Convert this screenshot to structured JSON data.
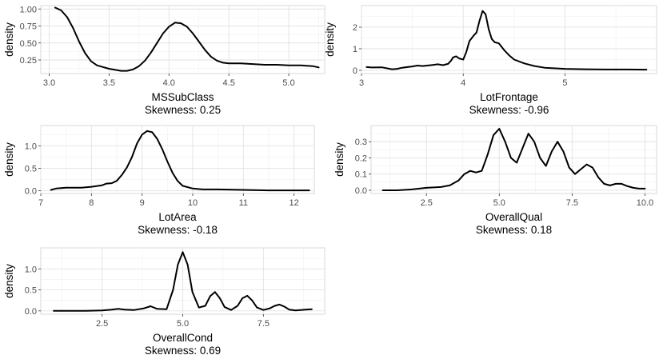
{
  "chart_data": [
    {
      "type": "line",
      "xlabel": "MSSubClass",
      "subtitle": "Skewness: 0.25",
      "ylabel": "density",
      "xlim": [
        2.93,
        5.3
      ],
      "ylim": [
        0.05,
        1.05
      ],
      "xticks": [
        3.0,
        3.5,
        4.0,
        4.5,
        5.0
      ],
      "xtick_labels": [
        "3.0",
        "3.5",
        "4.0",
        "4.5",
        "5.0"
      ],
      "yticks": [
        0.25,
        0.5,
        0.75,
        1.0
      ],
      "ytick_labels": [
        "0.25",
        "0.50",
        "0.75",
        "1.00"
      ],
      "grid": true,
      "x": [
        3.05,
        3.1,
        3.15,
        3.2,
        3.25,
        3.3,
        3.35,
        3.4,
        3.5,
        3.6,
        3.65,
        3.7,
        3.75,
        3.8,
        3.85,
        3.9,
        3.95,
        4.0,
        4.05,
        4.1,
        4.15,
        4.2,
        4.25,
        4.3,
        4.35,
        4.4,
        4.45,
        4.5,
        4.6,
        4.7,
        4.8,
        4.9,
        5.0,
        5.1,
        5.2,
        5.25
      ],
      "y": [
        1.02,
        0.98,
        0.88,
        0.72,
        0.52,
        0.35,
        0.23,
        0.17,
        0.12,
        0.09,
        0.09,
        0.11,
        0.16,
        0.24,
        0.36,
        0.5,
        0.64,
        0.74,
        0.8,
        0.79,
        0.74,
        0.64,
        0.52,
        0.4,
        0.3,
        0.24,
        0.21,
        0.2,
        0.2,
        0.19,
        0.18,
        0.18,
        0.17,
        0.17,
        0.16,
        0.14
      ]
    },
    {
      "type": "line",
      "xlabel": "LotFrontage",
      "subtitle": "Skewness: -0.96",
      "ylabel": "density",
      "xlim": [
        3.0,
        5.9
      ],
      "ylim": [
        -0.15,
        3.0
      ],
      "xticks": [
        3,
        4,
        5
      ],
      "xtick_labels": [
        "3",
        "4",
        "5"
      ],
      "yticks": [
        0,
        1,
        2
      ],
      "ytick_labels": [
        "0",
        "1",
        "2"
      ],
      "grid": true,
      "x": [
        3.05,
        3.1,
        3.2,
        3.3,
        3.35,
        3.4,
        3.5,
        3.55,
        3.6,
        3.7,
        3.75,
        3.8,
        3.85,
        3.88,
        3.9,
        3.93,
        3.96,
        4.0,
        4.03,
        4.06,
        4.1,
        4.13,
        4.16,
        4.19,
        4.22,
        4.25,
        4.28,
        4.31,
        4.35,
        4.4,
        4.45,
        4.5,
        4.6,
        4.7,
        4.8,
        5.0,
        5.2,
        5.4,
        5.6,
        5.8
      ],
      "y": [
        0.15,
        0.13,
        0.14,
        0.05,
        0.07,
        0.12,
        0.18,
        0.22,
        0.2,
        0.25,
        0.28,
        0.24,
        0.3,
        0.45,
        0.6,
        0.65,
        0.55,
        0.5,
        0.85,
        1.35,
        1.6,
        1.75,
        2.3,
        2.75,
        2.6,
        1.9,
        1.45,
        1.3,
        1.25,
        0.95,
        0.7,
        0.5,
        0.32,
        0.2,
        0.12,
        0.07,
        0.05,
        0.04,
        0.04,
        0.03
      ]
    },
    {
      "type": "line",
      "xlabel": "LotArea",
      "subtitle": "Skewness: -0.18",
      "ylabel": "density",
      "xlim": [
        7.0,
        12.4
      ],
      "ylim": [
        -0.06,
        1.45
      ],
      "xticks": [
        7,
        8,
        9,
        10,
        11,
        12
      ],
      "xtick_labels": [
        "7",
        "8",
        "9",
        "10",
        "11",
        "12"
      ],
      "yticks": [
        0.0,
        0.5,
        1.0
      ],
      "ytick_labels": [
        "0.0",
        "0.5",
        "1.0"
      ],
      "grid": true,
      "x": [
        7.2,
        7.3,
        7.5,
        7.8,
        8.0,
        8.2,
        8.3,
        8.4,
        8.5,
        8.6,
        8.7,
        8.8,
        8.9,
        9.0,
        9.1,
        9.2,
        9.3,
        9.4,
        9.5,
        9.6,
        9.7,
        9.8,
        10.0,
        10.2,
        10.5,
        11.0,
        11.5,
        12.0,
        12.3
      ],
      "y": [
        0.02,
        0.05,
        0.07,
        0.07,
        0.09,
        0.12,
        0.16,
        0.17,
        0.22,
        0.35,
        0.52,
        0.75,
        1.05,
        1.25,
        1.33,
        1.3,
        1.15,
        0.92,
        0.65,
        0.4,
        0.22,
        0.11,
        0.05,
        0.03,
        0.03,
        0.02,
        0.01,
        0.01,
        0.01
      ]
    },
    {
      "type": "line",
      "xlabel": "OverallQual",
      "subtitle": "Skewness: 0.18",
      "ylabel": "density",
      "xlim": [
        0.6,
        10.4
      ],
      "ylim": [
        -0.02,
        0.4
      ],
      "xticks": [
        2.5,
        5.0,
        7.5,
        10.0
      ],
      "xtick_labels": [
        "2.5",
        "5.0",
        "7.5",
        "10.0"
      ],
      "yticks": [
        0.0,
        0.1,
        0.2,
        0.3
      ],
      "ytick_labels": [
        "0.0",
        "0.1",
        "0.2",
        "0.3"
      ],
      "grid": true,
      "x": [
        1.0,
        1.5,
        2.0,
        2.5,
        3.0,
        3.3,
        3.6,
        3.8,
        4.0,
        4.2,
        4.4,
        4.6,
        4.8,
        5.0,
        5.2,
        5.4,
        5.6,
        5.8,
        6.0,
        6.2,
        6.4,
        6.6,
        6.8,
        7.0,
        7.2,
        7.4,
        7.6,
        7.8,
        8.0,
        8.2,
        8.4,
        8.6,
        8.8,
        9.0,
        9.2,
        9.4,
        9.6,
        9.8,
        10.0
      ],
      "y": [
        0.0,
        0.0,
        0.005,
        0.015,
        0.02,
        0.03,
        0.06,
        0.1,
        0.12,
        0.11,
        0.12,
        0.22,
        0.34,
        0.38,
        0.3,
        0.2,
        0.17,
        0.26,
        0.35,
        0.3,
        0.2,
        0.15,
        0.24,
        0.3,
        0.24,
        0.14,
        0.1,
        0.13,
        0.16,
        0.14,
        0.08,
        0.04,
        0.03,
        0.04,
        0.04,
        0.025,
        0.015,
        0.01,
        0.01
      ]
    },
    {
      "type": "line",
      "xlabel": "OverallCond",
      "subtitle": "Skewness: 0.69",
      "ylabel": "density",
      "xlim": [
        0.6,
        9.4
      ],
      "ylim": [
        -0.08,
        1.5
      ],
      "xticks": [
        2.5,
        5.0,
        7.5
      ],
      "xtick_labels": [
        "2.5",
        "5.0",
        "7.5"
      ],
      "yticks": [
        0.0,
        0.5,
        1.0
      ],
      "ytick_labels": [
        "0.0",
        "0.5",
        "1.0"
      ],
      "grid": true,
      "x": [
        1.0,
        1.5,
        2.0,
        2.5,
        2.8,
        3.0,
        3.2,
        3.5,
        3.8,
        4.0,
        4.2,
        4.5,
        4.7,
        4.85,
        5.0,
        5.15,
        5.3,
        5.5,
        5.7,
        5.85,
        6.0,
        6.15,
        6.3,
        6.5,
        6.7,
        6.85,
        7.0,
        7.15,
        7.3,
        7.5,
        7.7,
        7.85,
        8.0,
        8.15,
        8.3,
        8.5,
        8.8,
        9.0
      ],
      "y": [
        0.0,
        0.0,
        0.0,
        0.01,
        0.03,
        0.05,
        0.03,
        0.02,
        0.06,
        0.11,
        0.05,
        0.04,
        0.5,
        1.1,
        1.4,
        1.1,
        0.45,
        0.08,
        0.12,
        0.35,
        0.45,
        0.3,
        0.09,
        0.02,
        0.12,
        0.3,
        0.36,
        0.25,
        0.08,
        0.02,
        0.06,
        0.12,
        0.15,
        0.1,
        0.03,
        0.01,
        0.03,
        0.04
      ]
    }
  ]
}
